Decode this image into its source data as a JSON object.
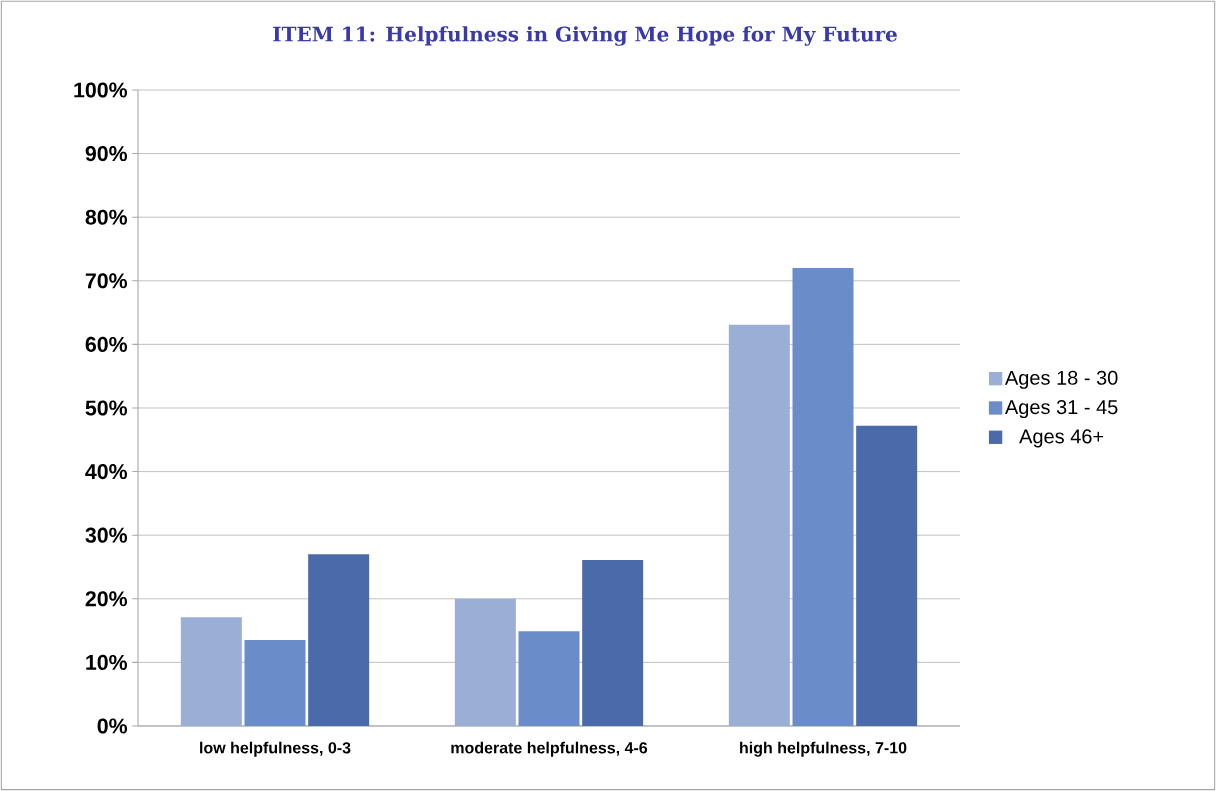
{
  "chart_data": {
    "type": "bar",
    "title": "ITEM 11: Helpfulness in Giving Me Hope for My Future",
    "categories": [
      "low helpfulness, 0-3",
      "moderate helpfulness, 4-6",
      "high helpfulness, 7-10"
    ],
    "series": [
      {
        "name": "Ages 18 - 30",
        "color": "#9aaed6",
        "values": [
          17.1,
          20.0,
          63.1
        ]
      },
      {
        "name": "Ages 31 - 45",
        "color": "#6a8cc8",
        "values": [
          13.5,
          14.9,
          72.0
        ]
      },
      {
        "name": "Ages 46+",
        "color": "#4a6aaa",
        "values": [
          27.0,
          26.1,
          47.2
        ]
      }
    ],
    "ylim": [
      0,
      100
    ],
    "yticks": [
      {
        "value": 0,
        "label": "0%"
      },
      {
        "value": 10,
        "label": "10%"
      },
      {
        "value": 20,
        "label": "20%"
      },
      {
        "value": 30,
        "label": "30%"
      },
      {
        "value": 40,
        "label": "40%"
      },
      {
        "value": 50,
        "label": "50%"
      },
      {
        "value": 60,
        "label": "60%"
      },
      {
        "value": 70,
        "label": "70%"
      },
      {
        "value": 80,
        "label": "80%"
      },
      {
        "value": 90,
        "label": "90%"
      },
      {
        "value": 100,
        "label": "100%"
      }
    ],
    "grid": "y",
    "legend": "right"
  }
}
